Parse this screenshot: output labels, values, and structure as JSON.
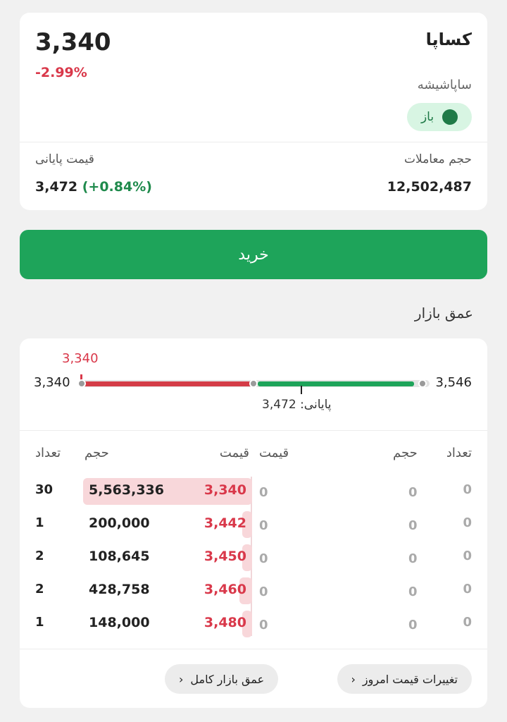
{
  "header": {
    "symbol": "کساپا",
    "company": "ساپاشیشه",
    "last_price": "3,340",
    "change_pct": "-2.99%",
    "status": "باز",
    "volume_label": "حجم معاملات",
    "volume_value": "12,502,487",
    "closing_label": "قیمت پایانی",
    "closing_value": "3,472",
    "closing_change": "(+0.84%)"
  },
  "buy_button": "خرید",
  "depth": {
    "title": "عمق بازار",
    "range_low": "3,340",
    "range_high": "3,546",
    "current_marker": "3,340",
    "closing_caption": "پایانی: 3,472",
    "headers": {
      "buy_count": "تعداد",
      "buy_volume": "حجم",
      "buy_price": "قیمت",
      "sell_price": "قیمت",
      "sell_volume": "حجم",
      "sell_count": "تعداد"
    },
    "rows": [
      {
        "buy_count": "30",
        "buy_volume": "5,563,336",
        "buy_price": "3,340",
        "sell_price": "0",
        "sell_volume": "0",
        "sell_count": "0"
      },
      {
        "buy_count": "1",
        "buy_volume": "200,000",
        "buy_price": "3,442",
        "sell_price": "0",
        "sell_volume": "0",
        "sell_count": "0"
      },
      {
        "buy_count": "2",
        "buy_volume": "108,645",
        "buy_price": "3,450",
        "sell_price": "0",
        "sell_volume": "0",
        "sell_count": "0"
      },
      {
        "buy_count": "2",
        "buy_volume": "428,758",
        "buy_price": "3,460",
        "sell_price": "0",
        "sell_volume": "0",
        "sell_count": "0"
      },
      {
        "buy_count": "1",
        "buy_volume": "148,000",
        "buy_price": "3,480",
        "sell_price": "0",
        "sell_volume": "0",
        "sell_count": "0"
      }
    ],
    "buy_volume_share": [
      1.0,
      0.036,
      0.02,
      0.077,
      0.027
    ],
    "price_changes_button": "تغییرات قیمت امروز",
    "full_depth_button": "عمق بازار کامل"
  },
  "colors": {
    "accent_green": "#1ea45a",
    "negative_red": "#d9384a",
    "positive_green": "#1f8a4c"
  }
}
